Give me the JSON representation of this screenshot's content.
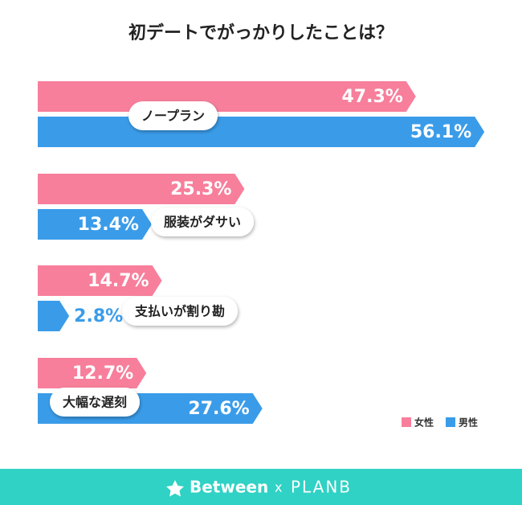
{
  "chart_data": {
    "type": "bar",
    "title": "初デートでがっかりしたことは？",
    "categories": [
      "ノープラン",
      "服装がダサい",
      "支払いが割り勘",
      "大幅な遅刻"
    ],
    "series": [
      {
        "name": "女性",
        "color": "#f77f9b",
        "values": [
          47.3,
          25.3,
          14.7,
          12.7
        ],
        "value_labels": [
          "47.3%",
          "25.3%",
          "14.7%",
          "12.7%"
        ]
      },
      {
        "name": "男性",
        "color": "#3a9ce9",
        "values": [
          56.1,
          13.4,
          2.8,
          27.6
        ],
        "value_labels": [
          "56.1%",
          "13.4%",
          "2.8%",
          "27.6%"
        ]
      }
    ],
    "legend": "bottom-right"
  },
  "footer": {
    "brand": "Between",
    "separator": "x",
    "partner": "PLANB"
  }
}
